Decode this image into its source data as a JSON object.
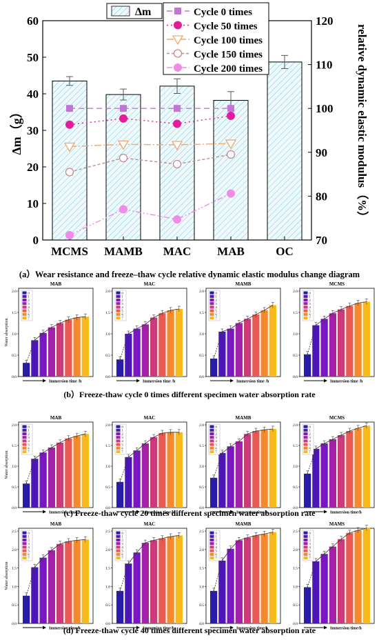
{
  "chart_data": [
    {
      "type": "bar",
      "categories": [
        "MCMS",
        "MAMB",
        "MAC",
        "MAB",
        "OC"
      ],
      "bar_series": {
        "name": "Δm",
        "values": [
          43.5,
          39.8,
          42.1,
          38.2,
          48.7
        ],
        "errors": [
          1.2,
          1.5,
          2.0,
          2.4,
          1.8
        ]
      },
      "line_series": [
        {
          "name": "Cycle 0 times",
          "values": [
            100,
            100,
            100,
            100
          ],
          "color": "#c474d6",
          "marker": "square"
        },
        {
          "name": "Cycle 50 times",
          "values": [
            96.3,
            97.7,
            96.5,
            98.3
          ],
          "color": "#e21d9c",
          "marker": "circle"
        },
        {
          "name": "Cycle 100 times",
          "values": [
            91.3,
            91.8,
            91.7,
            92.0
          ],
          "color": "#f2a66a",
          "marker": "triangle-down"
        },
        {
          "name": "Cycle 150 times",
          "values": [
            85.5,
            88.7,
            87.3,
            89.5
          ],
          "color": "#c58a8a",
          "marker": "circle-open"
        },
        {
          "name": "Cycle 200 times",
          "values": [
            71.1,
            77.0,
            74.7,
            80.6
          ],
          "color": "#f08be8",
          "marker": "circle"
        }
      ],
      "ylabel": "Δm（g）",
      "ylim": [
        0,
        60
      ],
      "yticks": [
        "0",
        "10",
        "20",
        "30",
        "40",
        "50",
        "60"
      ],
      "y2label": "relative dynamic elastic modulus（%）",
      "y2lim": [
        70,
        120
      ],
      "y2ticks": [
        "70",
        "80",
        "90",
        "100",
        "110",
        "120"
      ],
      "bar_legend_label": "Δm",
      "legend_position": "top-right",
      "caption": "(a）Wear resistance and freeze–thaw cycle relative dynamic elastic modulus change diagram"
    },
    {
      "type": "bar",
      "group_caption": "(b）Freeze-thaw cycle 0 times different specimen water absorption rate",
      "ylabel": "Water absorption",
      "xlabel": "Immersion time /h",
      "legend_labels": [
        "0",
        "1",
        "2",
        "3",
        "4",
        "5",
        "6",
        "7"
      ],
      "panels": [
        {
          "title": "MAB",
          "ylim": [
            0,
            2.0
          ],
          "yticks": [
            "0.0",
            "0.5",
            "1.0",
            "1.5",
            "2.0"
          ],
          "values": [
            0.32,
            0.85,
            1.02,
            1.15,
            1.25,
            1.33,
            1.38,
            1.4
          ]
        },
        {
          "title": "MAC",
          "ylim": [
            0,
            2.0
          ],
          "yticks": [
            "0.0",
            "0.5",
            "1.0",
            "1.5",
            "2.0"
          ],
          "values": [
            0.4,
            1.0,
            1.12,
            1.22,
            1.38,
            1.48,
            1.55,
            1.58
          ]
        },
        {
          "title": "MAMB",
          "ylim": [
            0,
            2.0
          ],
          "yticks": [
            "0.0",
            "0.5",
            "1.0",
            "1.5",
            "2.0"
          ],
          "values": [
            0.42,
            1.05,
            1.12,
            1.25,
            1.35,
            1.45,
            1.55,
            1.67
          ]
        },
        {
          "title": "MCMS",
          "ylim": [
            0,
            2.0
          ],
          "yticks": [
            "0.0",
            "0.5",
            "1.0",
            "1.5",
            "2.0"
          ],
          "values": [
            0.52,
            1.2,
            1.35,
            1.48,
            1.57,
            1.65,
            1.72,
            1.75
          ]
        }
      ]
    },
    {
      "type": "bar",
      "group_caption": "(c) Freeze-thaw cycle 20 times different specimen water absorption rate",
      "ylabel": "Water absorption",
      "xlabel": "Immersion time/h",
      "legend_labels": [
        "0",
        "1",
        "2",
        "3",
        "4",
        "5",
        "6",
        "7"
      ],
      "panels": [
        {
          "title": "MAB",
          "ylim": [
            0,
            2.0
          ],
          "yticks": [
            "0.0",
            "0.5",
            "1.0",
            "1.5",
            "2.0"
          ],
          "values": [
            0.58,
            1.18,
            1.33,
            1.45,
            1.57,
            1.67,
            1.73,
            1.78
          ]
        },
        {
          "title": "MAC",
          "ylim": [
            0,
            2.0
          ],
          "yticks": [
            "0.0",
            "0.5",
            "1.0",
            "1.5",
            "2.0"
          ],
          "values": [
            0.62,
            1.22,
            1.38,
            1.55,
            1.7,
            1.8,
            1.82,
            1.82
          ]
        },
        {
          "title": "MAMB",
          "ylim": [
            0,
            2.0
          ],
          "yticks": [
            "0.0",
            "0.5",
            "1.0",
            "1.5",
            "2.0"
          ],
          "values": [
            0.72,
            1.32,
            1.48,
            1.6,
            1.78,
            1.85,
            1.88,
            1.9
          ]
        },
        {
          "title": "MCMS",
          "ylim": [
            0,
            2.0
          ],
          "yticks": [
            "0.0",
            "0.5",
            "1.0",
            "1.5",
            "2.0"
          ],
          "values": [
            0.82,
            1.42,
            1.55,
            1.65,
            1.75,
            1.85,
            1.92,
            1.98
          ]
        }
      ]
    },
    {
      "type": "bar",
      "group_caption": "(d) Freeze-thaw cycle 40 times different specimen water absorption rate",
      "ylabel": "Water absorption",
      "xlabel": "Immersion time/h",
      "legend_labels": [
        "0",
        "1",
        "2",
        "3",
        "4",
        "5",
        "6",
        "7"
      ],
      "panels": [
        {
          "title": "MAB",
          "ylim": [
            0,
            2.5
          ],
          "yticks": [
            "0.0",
            "0.5",
            "1.0",
            "1.5",
            "2.0",
            "2.5"
          ],
          "values": [
            0.75,
            1.52,
            1.78,
            1.98,
            2.15,
            2.22,
            2.25,
            2.27
          ]
        },
        {
          "title": "MAC",
          "ylim": [
            0,
            2.5
          ],
          "yticks": [
            "0.0",
            "0.5",
            "1.0",
            "1.5",
            "2.0",
            "2.5"
          ],
          "values": [
            0.88,
            1.62,
            1.92,
            2.18,
            2.25,
            2.3,
            2.35,
            2.38
          ]
        },
        {
          "title": "MAMB",
          "ylim": [
            0,
            2.5
          ],
          "yticks": [
            "0.0",
            "0.5",
            "1.0",
            "1.5",
            "2.0",
            "2.5"
          ],
          "values": [
            0.88,
            1.7,
            2.02,
            2.25,
            2.32,
            2.38,
            2.42,
            2.47
          ]
        },
        {
          "title": "MAMS",
          "ylim": [
            0,
            2.5
          ],
          "yticks": [
            "0.0",
            "0.5",
            "1.0",
            "1.5",
            "2.0",
            "2.5"
          ],
          "values": [
            0.98,
            1.68,
            1.88,
            2.08,
            2.28,
            2.45,
            2.52,
            2.58
          ]
        }
      ]
    }
  ],
  "palette": [
    "#2a1aa8",
    "#4e16b8",
    "#7a16c2",
    "#a51fa9",
    "#cc3a7c",
    "#e65a52",
    "#f58a2c",
    "#f9b81b"
  ]
}
